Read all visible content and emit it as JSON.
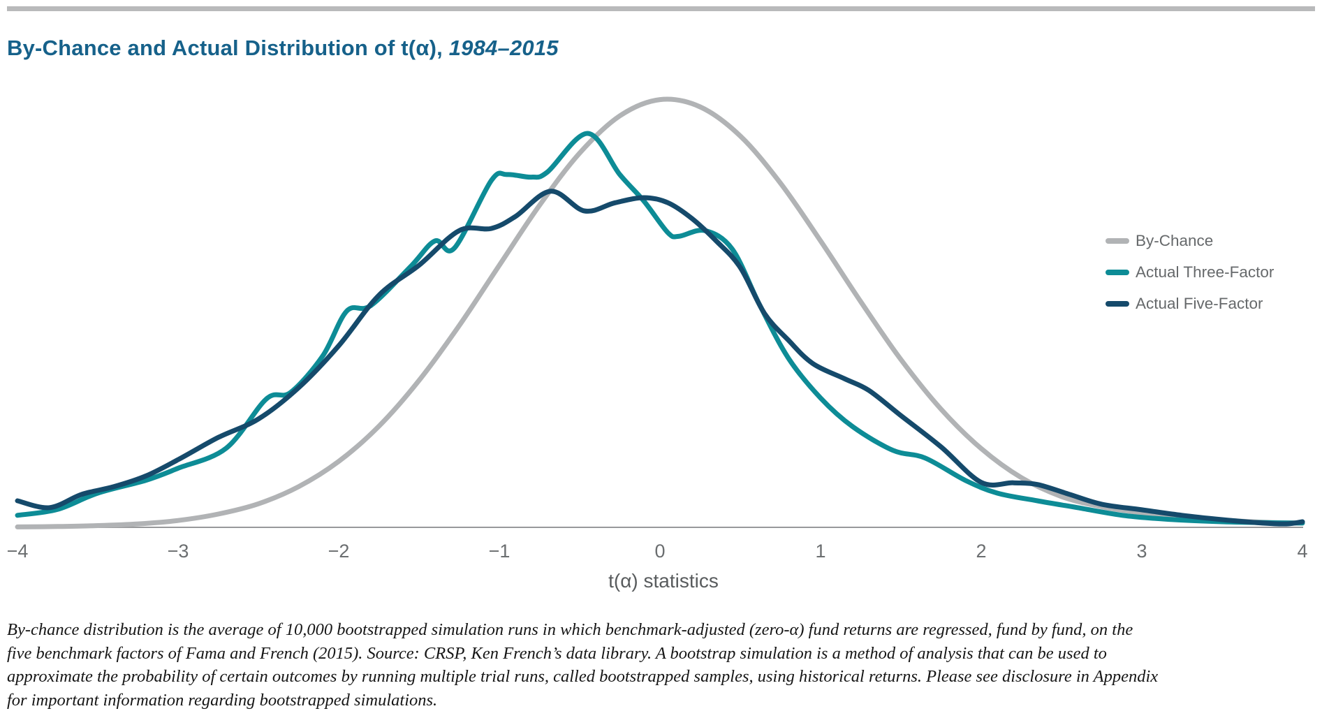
{
  "header": {
    "rule_color": "#b9babb",
    "title_regular": "By-Chance and Actual Distribution of t(α), ",
    "title_italic": "1984–2015",
    "title_color": "#16618a"
  },
  "chart_data": {
    "type": "line",
    "title": "By-Chance and Actual Distribution of t(α), 1984–2015",
    "xlabel": "t(α) statistics",
    "ylabel": "",
    "x_range": [
      -4,
      4
    ],
    "ylim": [
      0,
      1.05
    ],
    "y_note": "density, normalized so the By-Chance peak = 1 (no y-axis drawn)",
    "grid": false,
    "legend_position": "right",
    "axis_color": "#98999b",
    "tick_values": [
      -4,
      -3,
      -2,
      -1,
      0,
      1,
      2,
      3,
      4
    ],
    "tick_labels": [
      "−4",
      "−3",
      "−2",
      "−1",
      "0",
      "1",
      "2",
      "3",
      "4"
    ],
    "series": [
      {
        "name": "By-Chance",
        "color": "#b1b3b5",
        "stroke_width": 7,
        "x": [
          -4,
          -3.75,
          -3.5,
          -3.25,
          -3,
          -2.75,
          -2.5,
          -2.25,
          -2,
          -1.75,
          -1.5,
          -1.25,
          -1,
          -0.75,
          -0.5,
          -0.25,
          0,
          0.25,
          0.5,
          0.75,
          1,
          1.25,
          1.5,
          1.75,
          2,
          2.25,
          2.5,
          2.75,
          3,
          3.25,
          3.5,
          3.75,
          4
        ],
        "y": [
          0.001,
          0.002,
          0.004,
          0.008,
          0.016,
          0.031,
          0.055,
          0.095,
          0.154,
          0.236,
          0.343,
          0.471,
          0.612,
          0.752,
          0.874,
          0.961,
          0.999,
          0.982,
          0.914,
          0.804,
          0.669,
          0.527,
          0.392,
          0.276,
          0.184,
          0.116,
          0.072,
          0.048,
          0.034,
          0.024,
          0.017,
          0.012,
          0.01
        ]
      },
      {
        "name": "Actual Three-Factor",
        "color": "#0d8c96",
        "stroke_width": 7,
        "x": [
          -4,
          -3.75,
          -3.5,
          -3.2,
          -3,
          -2.7,
          -2.45,
          -2.3,
          -2.1,
          -1.95,
          -1.8,
          -1.55,
          -1.4,
          -1.28,
          -1.05,
          -0.95,
          -0.8,
          -0.7,
          -0.45,
          -0.25,
          -0.1,
          0.05,
          0.12,
          0.28,
          0.45,
          0.62,
          0.8,
          1,
          1.2,
          1.45,
          1.65,
          1.9,
          2.1,
          2.35,
          2.6,
          2.9,
          3.2,
          3.5,
          3.75,
          4
        ],
        "y": [
          0.028,
          0.042,
          0.08,
          0.11,
          0.138,
          0.185,
          0.3,
          0.315,
          0.4,
          0.505,
          0.518,
          0.61,
          0.669,
          0.652,
          0.81,
          0.824,
          0.818,
          0.83,
          0.92,
          0.824,
          0.762,
          0.688,
          0.68,
          0.693,
          0.65,
          0.52,
          0.395,
          0.302,
          0.235,
          0.18,
          0.162,
          0.11,
          0.08,
          0.062,
          0.046,
          0.027,
          0.018,
          0.013,
          0.011,
          0.01
        ]
      },
      {
        "name": "Actual Five-Factor",
        "color": "#154a6b",
        "stroke_width": 7,
        "x": [
          -4,
          -3.8,
          -3.6,
          -3.4,
          -3.2,
          -3,
          -2.75,
          -2.5,
          -2.25,
          -2,
          -1.75,
          -1.5,
          -1.25,
          -1.05,
          -0.9,
          -0.68,
          -0.47,
          -0.28,
          -0.1,
          0.05,
          0.2,
          0.35,
          0.5,
          0.65,
          0.8,
          0.95,
          1.15,
          1.3,
          1.5,
          1.75,
          2,
          2.2,
          2.35,
          2.55,
          2.75,
          3,
          3.25,
          3.5,
          3.75,
          3.9,
          4
        ],
        "y": [
          0.062,
          0.046,
          0.077,
          0.095,
          0.12,
          0.158,
          0.21,
          0.253,
          0.326,
          0.424,
          0.542,
          0.612,
          0.693,
          0.698,
          0.726,
          0.785,
          0.739,
          0.758,
          0.77,
          0.758,
          0.721,
          0.669,
          0.607,
          0.5,
          0.437,
          0.383,
          0.347,
          0.32,
          0.261,
          0.188,
          0.105,
          0.104,
          0.1,
          0.077,
          0.054,
          0.041,
          0.028,
          0.018,
          0.01,
          0.008,
          0.013
        ]
      }
    ]
  },
  "legend": {
    "items": [
      {
        "label": "By-Chance",
        "color": "#b1b3b5"
      },
      {
        "label": "Actual Three-Factor",
        "color": "#0d8c96"
      },
      {
        "label": "Actual Five-Factor",
        "color": "#154a6b"
      }
    ]
  },
  "footnote_lines": [
    "By-chance distribution is the average of 10,000 bootstrapped simulation runs in which benchmark-adjusted (zero-α) fund returns are regressed, fund by fund, on the",
    "five benchmark factors of Fama and French (2015). Source: CRSP, Ken French’s data library. A bootstrap simulation is a method of analysis that can be used to",
    "approximate the probability of certain outcomes by running multiple trial runs, called bootstrapped samples, using historical returns. Please see disclosure in Appendix",
    "for important information regarding bootstrapped simulations."
  ]
}
